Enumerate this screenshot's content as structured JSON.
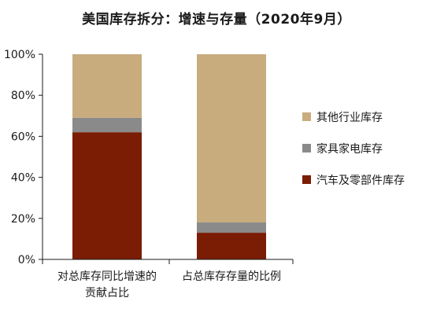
{
  "chart_data": {
    "type": "stacked-bar",
    "title": "美国库存拆分：增速与存量（2020年9月）",
    "categories": [
      [
        "对总库存同比增速的",
        "贡献占比"
      ],
      [
        "占总库存存量的比例"
      ]
    ],
    "series": [
      {
        "name": "汽车及零部件库存",
        "color": "#7b1c04",
        "values": [
          62,
          13
        ]
      },
      {
        "name": "家具家电库存",
        "color": "#8a8a8a",
        "values": [
          7,
          5
        ]
      },
      {
        "name": "其他行业库存",
        "color": "#c8ac7e",
        "values": [
          31,
          82
        ]
      }
    ],
    "yticks": [
      "0%",
      "20%",
      "40%",
      "60%",
      "80%",
      "100%"
    ],
    "ylim": [
      0,
      100
    ],
    "legend_position": "right",
    "grid": false
  }
}
